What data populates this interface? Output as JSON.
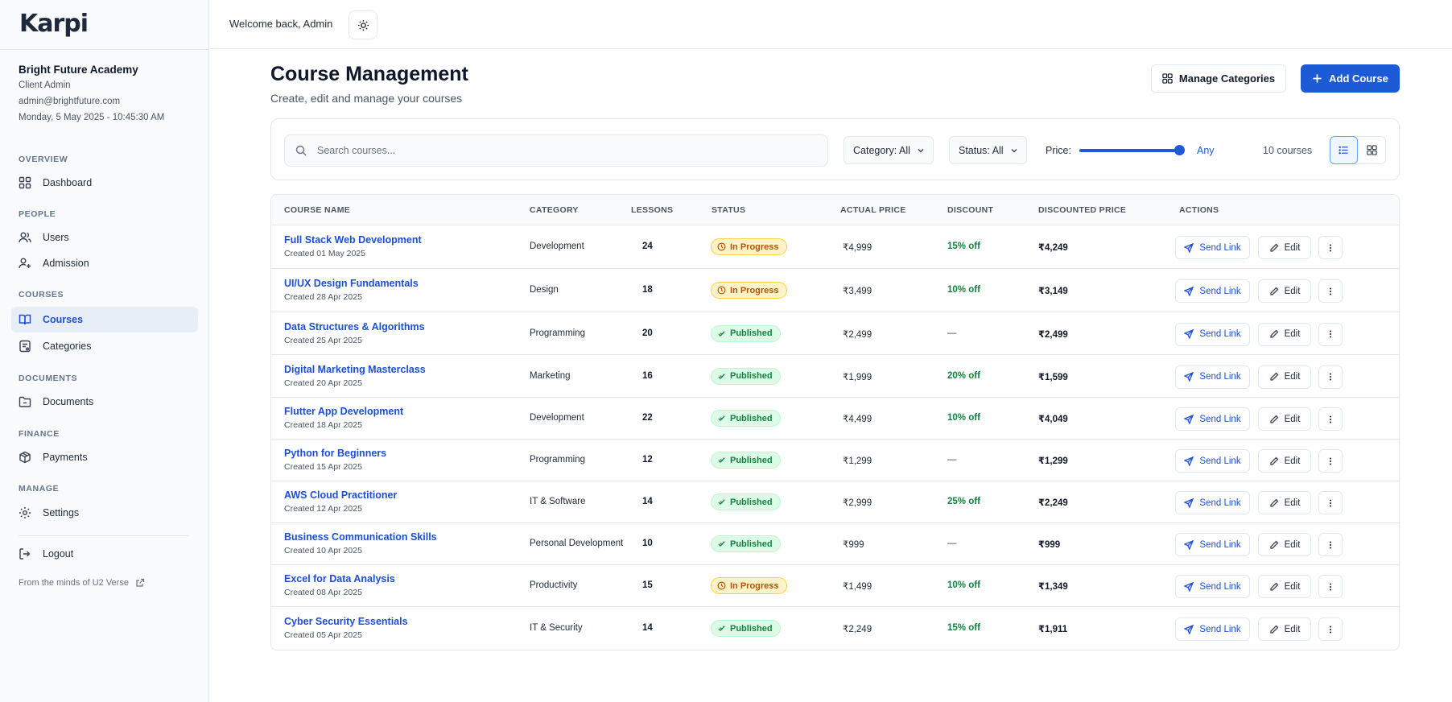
{
  "app": {
    "logo": "Karpi"
  },
  "org": {
    "name": "Bright Future Academy",
    "role": "Client Admin",
    "email": "admin@brightfuture.com",
    "datetime": "Monday, 5 May 2025 - 10:45:30 AM"
  },
  "sidebar": {
    "sections": [
      {
        "title": "OVERVIEW"
      },
      {
        "title": "PEOPLE"
      },
      {
        "title": "COURSES"
      },
      {
        "title": "DOCUMENTS"
      },
      {
        "title": "FINANCE"
      },
      {
        "title": "MANAGE"
      }
    ],
    "items": [
      {
        "label": "Dashboard",
        "icon": "dashboard-icon"
      },
      {
        "label": "Users",
        "icon": "users-icon"
      },
      {
        "label": "Admission",
        "icon": "admission-icon"
      },
      {
        "label": "Courses",
        "icon": "book-icon",
        "active": true
      },
      {
        "label": "Categories",
        "icon": "categories-icon"
      },
      {
        "label": "Documents",
        "icon": "folder-icon"
      },
      {
        "label": "Payments",
        "icon": "package-icon"
      },
      {
        "label": "Settings",
        "icon": "gear-icon"
      }
    ],
    "logout": "Logout",
    "footer": "From the minds of U2 Verse"
  },
  "topbar": {
    "welcome": "Welcome back, Admin",
    "theme_icon": "sun-icon"
  },
  "header": {
    "title": "Course Management",
    "subtitle": "Create, edit and manage your courses",
    "manage_categories": "Manage Categories",
    "add_course": "Add Course"
  },
  "filters": {
    "search_placeholder": "Search courses...",
    "category": "Category: All",
    "status": "Status: All",
    "price_label": "Price:",
    "price_value": "Any",
    "price_slider_fraction": 1.0,
    "count": "10 courses",
    "view": "list"
  },
  "table": {
    "headers": [
      "COURSE NAME",
      "CATEGORY",
      "LESSONS",
      "STATUS",
      "ACTUAL PRICE",
      "DISCOUNT",
      "DISCOUNTED PRICE",
      "ACTIONS"
    ],
    "actions": {
      "send": "Send Link",
      "edit": "Edit"
    },
    "rows": [
      {
        "name": "Full Stack Web Development",
        "created": "Created 01 May 2025",
        "category": "Development",
        "lessons": "24",
        "status": "In Progress",
        "price": "₹4,999",
        "discount": "15% off",
        "discounted": "₹4,249"
      },
      {
        "name": "UI/UX Design Fundamentals",
        "created": "Created 28 Apr 2025",
        "category": "Design",
        "lessons": "18",
        "status": "In Progress",
        "price": "₹3,499",
        "discount": "10% off",
        "discounted": "₹3,149"
      },
      {
        "name": "Data Structures & Algorithms",
        "created": "Created 25 Apr 2025",
        "category": "Programming",
        "lessons": "20",
        "status": "Published",
        "price": "₹2,499",
        "discount": "—",
        "discounted": "₹2,499"
      },
      {
        "name": "Digital Marketing Masterclass",
        "created": "Created 20 Apr 2025",
        "category": "Marketing",
        "lessons": "16",
        "status": "Published",
        "price": "₹1,999",
        "discount": "20% off",
        "discounted": "₹1,599"
      },
      {
        "name": "Flutter App Development",
        "created": "Created 18 Apr 2025",
        "category": "Development",
        "lessons": "22",
        "status": "Published",
        "price": "₹4,499",
        "discount": "10% off",
        "discounted": "₹4,049"
      },
      {
        "name": "Python for Beginners",
        "created": "Created 15 Apr 2025",
        "category": "Programming",
        "lessons": "12",
        "status": "Published",
        "price": "₹1,299",
        "discount": "—",
        "discounted": "₹1,299"
      },
      {
        "name": "AWS Cloud Practitioner",
        "created": "Created 12 Apr 2025",
        "category": "IT & Software",
        "lessons": "14",
        "status": "Published",
        "price": "₹2,999",
        "discount": "25% off",
        "discounted": "₹2,249"
      },
      {
        "name": "Business Communication Skills",
        "created": "Created 10 Apr 2025",
        "category": "Personal Development",
        "lessons": "10",
        "status": "Published",
        "price": "₹999",
        "discount": "—",
        "discounted": "₹999"
      },
      {
        "name": "Excel for Data Analysis",
        "created": "Created 08 Apr 2025",
        "category": "Productivity",
        "lessons": "15",
        "status": "In Progress",
        "price": "₹1,499",
        "discount": "10% off",
        "discounted": "₹1,349"
      },
      {
        "name": "Cyber Security Essentials",
        "created": "Created 05 Apr 2025",
        "category": "IT & Security",
        "lessons": "14",
        "status": "Published",
        "price": "₹2,249",
        "discount": "15% off",
        "discounted": "₹1,911"
      }
    ]
  },
  "colors": {
    "primary": "#1d5bd6",
    "link": "#1d4ed8",
    "success": "#15803d",
    "warning": "#b45309"
  }
}
